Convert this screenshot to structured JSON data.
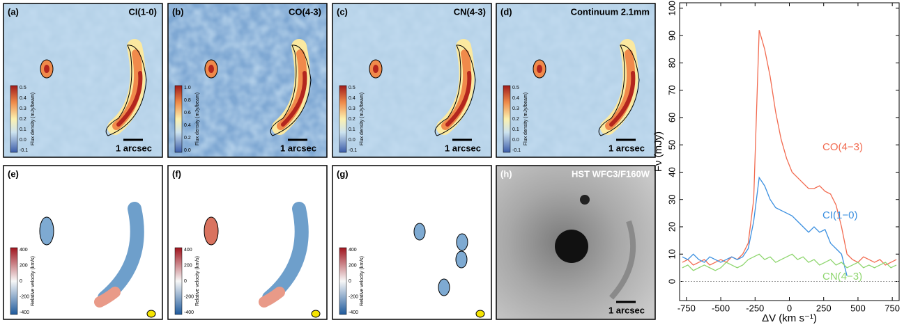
{
  "panels": [
    {
      "label": "(a)",
      "title": "CI(1-0)",
      "scalebar": "1 arcsec",
      "colorbar": {
        "label": "Flux density (mJy/beam)",
        "ticks": [
          "0.5",
          "0.4",
          "0.3",
          "0.2",
          "0.1",
          "0.0",
          "-0.1"
        ]
      }
    },
    {
      "label": "(b)",
      "title": "CO(4-3)",
      "scalebar": "1 arcsec",
      "colorbar": {
        "label": "Flux density (mJy/beam)",
        "ticks": [
          "1.0",
          "0.8",
          "0.6",
          "0.4",
          "0.2",
          "0.0"
        ]
      }
    },
    {
      "label": "(c)",
      "title": "CN(4-3)",
      "scalebar": "1 arcsec",
      "colorbar": {
        "label": "Flux density (mJy/beam)",
        "ticks": [
          "0.5",
          "0.4",
          "0.3",
          "0.2",
          "0.1",
          "0.0",
          "-0.1"
        ]
      }
    },
    {
      "label": "(d)",
      "title": "Continuum 2.1mm",
      "scalebar": "1 arcsec",
      "colorbar": {
        "label": "Flux density (mJy/beam)",
        "ticks": [
          "0.5",
          "0.4",
          "0.3",
          "0.2",
          "0.1",
          "0.0",
          "-0.1"
        ]
      }
    },
    {
      "label": "(e)",
      "colorbar": {
        "label": "Relative velocity (km/s)",
        "ticks": [
          "400",
          "200",
          "0",
          "-200",
          "-400"
        ]
      }
    },
    {
      "label": "(f)",
      "colorbar": {
        "label": "Relative velocity (km/s)",
        "ticks": [
          "400",
          "200",
          "0",
          "-200",
          "-400"
        ]
      }
    },
    {
      "label": "(g)",
      "colorbar": {
        "label": "Relative velocity (km/s)",
        "ticks": [
          "400",
          "200",
          "0",
          "-200",
          "-400"
        ]
      }
    },
    {
      "label": "(h)",
      "title": "HST WFC3/F160W",
      "scalebar": "1 arcsec"
    }
  ],
  "chart_data": {
    "type": "line",
    "x_label": "ΔV (km s⁻¹)",
    "y_label": "Fν (mJy)",
    "x": [
      -780,
      -740,
      -700,
      -660,
      -620,
      -580,
      -540,
      -500,
      -460,
      -420,
      -380,
      -340,
      -300,
      -260,
      -220,
      -180,
      -140,
      -100,
      -60,
      -20,
      20,
      60,
      100,
      140,
      180,
      220,
      260,
      300,
      340,
      380,
      420,
      460,
      500,
      540,
      580,
      620,
      660,
      700,
      740,
      780
    ],
    "series": [
      {
        "name": "CO(4−3)",
        "color": "#f26a4f",
        "values": [
          7,
          8,
          6,
          7,
          8,
          6,
          7,
          8,
          7,
          9,
          8,
          10,
          14,
          30,
          92,
          85,
          75,
          62,
          52,
          45,
          40,
          38,
          36,
          34,
          34,
          35,
          33,
          32,
          28,
          20,
          10,
          8,
          7,
          9,
          8,
          7,
          8,
          6,
          7,
          8
        ]
      },
      {
        "name": "CI(1−0)",
        "color": "#3a8fe0",
        "values": [
          9,
          8,
          10,
          8,
          7,
          9,
          8,
          7,
          8,
          9,
          8,
          9,
          12,
          22,
          38,
          35,
          30,
          27,
          26,
          25,
          24,
          22,
          20,
          18,
          20,
          18,
          19,
          14,
          12,
          10,
          2,
          null,
          null,
          null,
          null,
          null,
          null,
          null,
          null,
          null
        ]
      },
      {
        "name": "CN(4−3)",
        "color": "#8ed66e",
        "values": [
          5,
          6,
          4,
          5,
          6,
          5,
          4,
          5,
          7,
          6,
          5,
          6,
          8,
          9,
          10,
          8,
          9,
          7,
          8,
          9,
          10,
          8,
          9,
          7,
          8,
          6,
          7,
          8,
          6,
          7,
          5,
          6,
          7,
          5,
          6,
          5,
          6,
          7,
          5,
          6
        ]
      }
    ],
    "xlim": [
      -800,
      800
    ],
    "xticks": [
      -750,
      -500,
      -250,
      0,
      250,
      500,
      750
    ],
    "ylim": [
      -7,
      102
    ],
    "yticks": [
      0,
      10,
      20,
      30,
      40,
      50,
      60,
      70,
      80,
      90,
      100
    ]
  }
}
